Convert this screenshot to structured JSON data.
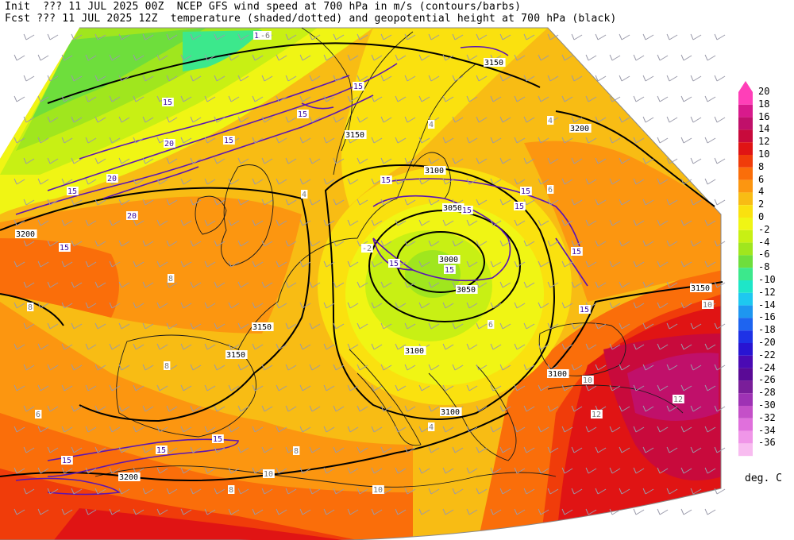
{
  "header": {
    "line1": "Init  ??? 11 JUL 2025 00Z  NCEP GFS wind speed at 700 hPa in m/s (contours/barbs)",
    "line2": "Fcst ??? 11 JUL 2025 12Z  temperature (shaded/dotted) and geopotential height at 700 hPa (black)"
  },
  "colorbar": {
    "units": "deg. C",
    "levels": [
      "20",
      "18",
      "16",
      "14",
      "12",
      "10",
      "8",
      "6",
      "4",
      "2",
      "0",
      "-2",
      "-4",
      "-6",
      "-8",
      "-10",
      "-12",
      "-14",
      "-16",
      "-18",
      "-20",
      "-22",
      "-24",
      "-26",
      "-28",
      "-30",
      "-32",
      "-34",
      "-36"
    ],
    "colors": [
      "#ff3fb8",
      "#d81a8c",
      "#c0106a",
      "#c80a3c",
      "#e01414",
      "#f03c0a",
      "#fa6e0a",
      "#fc9610",
      "#f8bc14",
      "#fae10f",
      "#f0f514",
      "#c8f014",
      "#a0e61e",
      "#6ede3c",
      "#3ce88c",
      "#1ee6c8",
      "#1ec8f0",
      "#1e96f0",
      "#1e64f0",
      "#1e32e6",
      "#2814d2",
      "#4a0ab4",
      "#5a0a96",
      "#7a1e9a",
      "#9e32b4",
      "#c450c8",
      "#e070dc",
      "#f096e8",
      "#f8bcf0"
    ]
  },
  "height_labels": [
    "3150",
    "3200",
    "3100",
    "3050",
    "3000",
    "3050",
    "3150",
    "3150",
    "3200",
    "3150",
    "3100",
    "3100",
    "3100",
    "3150",
    "3200"
  ],
  "wind_labels": [
    "15",
    "15",
    "15",
    "20",
    "20",
    "20",
    "15",
    "15",
    "15",
    "15",
    "15",
    "15",
    "15",
    "15",
    "15",
    "15",
    "15",
    "15",
    "15",
    "15",
    "15"
  ],
  "temp_labels": [
    "-6",
    "4",
    "4",
    "8",
    "8",
    "6",
    "-2",
    "6",
    "8",
    "10",
    "12",
    "10",
    "4",
    "8",
    "8",
    "10",
    "12",
    "10",
    "6",
    "4"
  ]
}
